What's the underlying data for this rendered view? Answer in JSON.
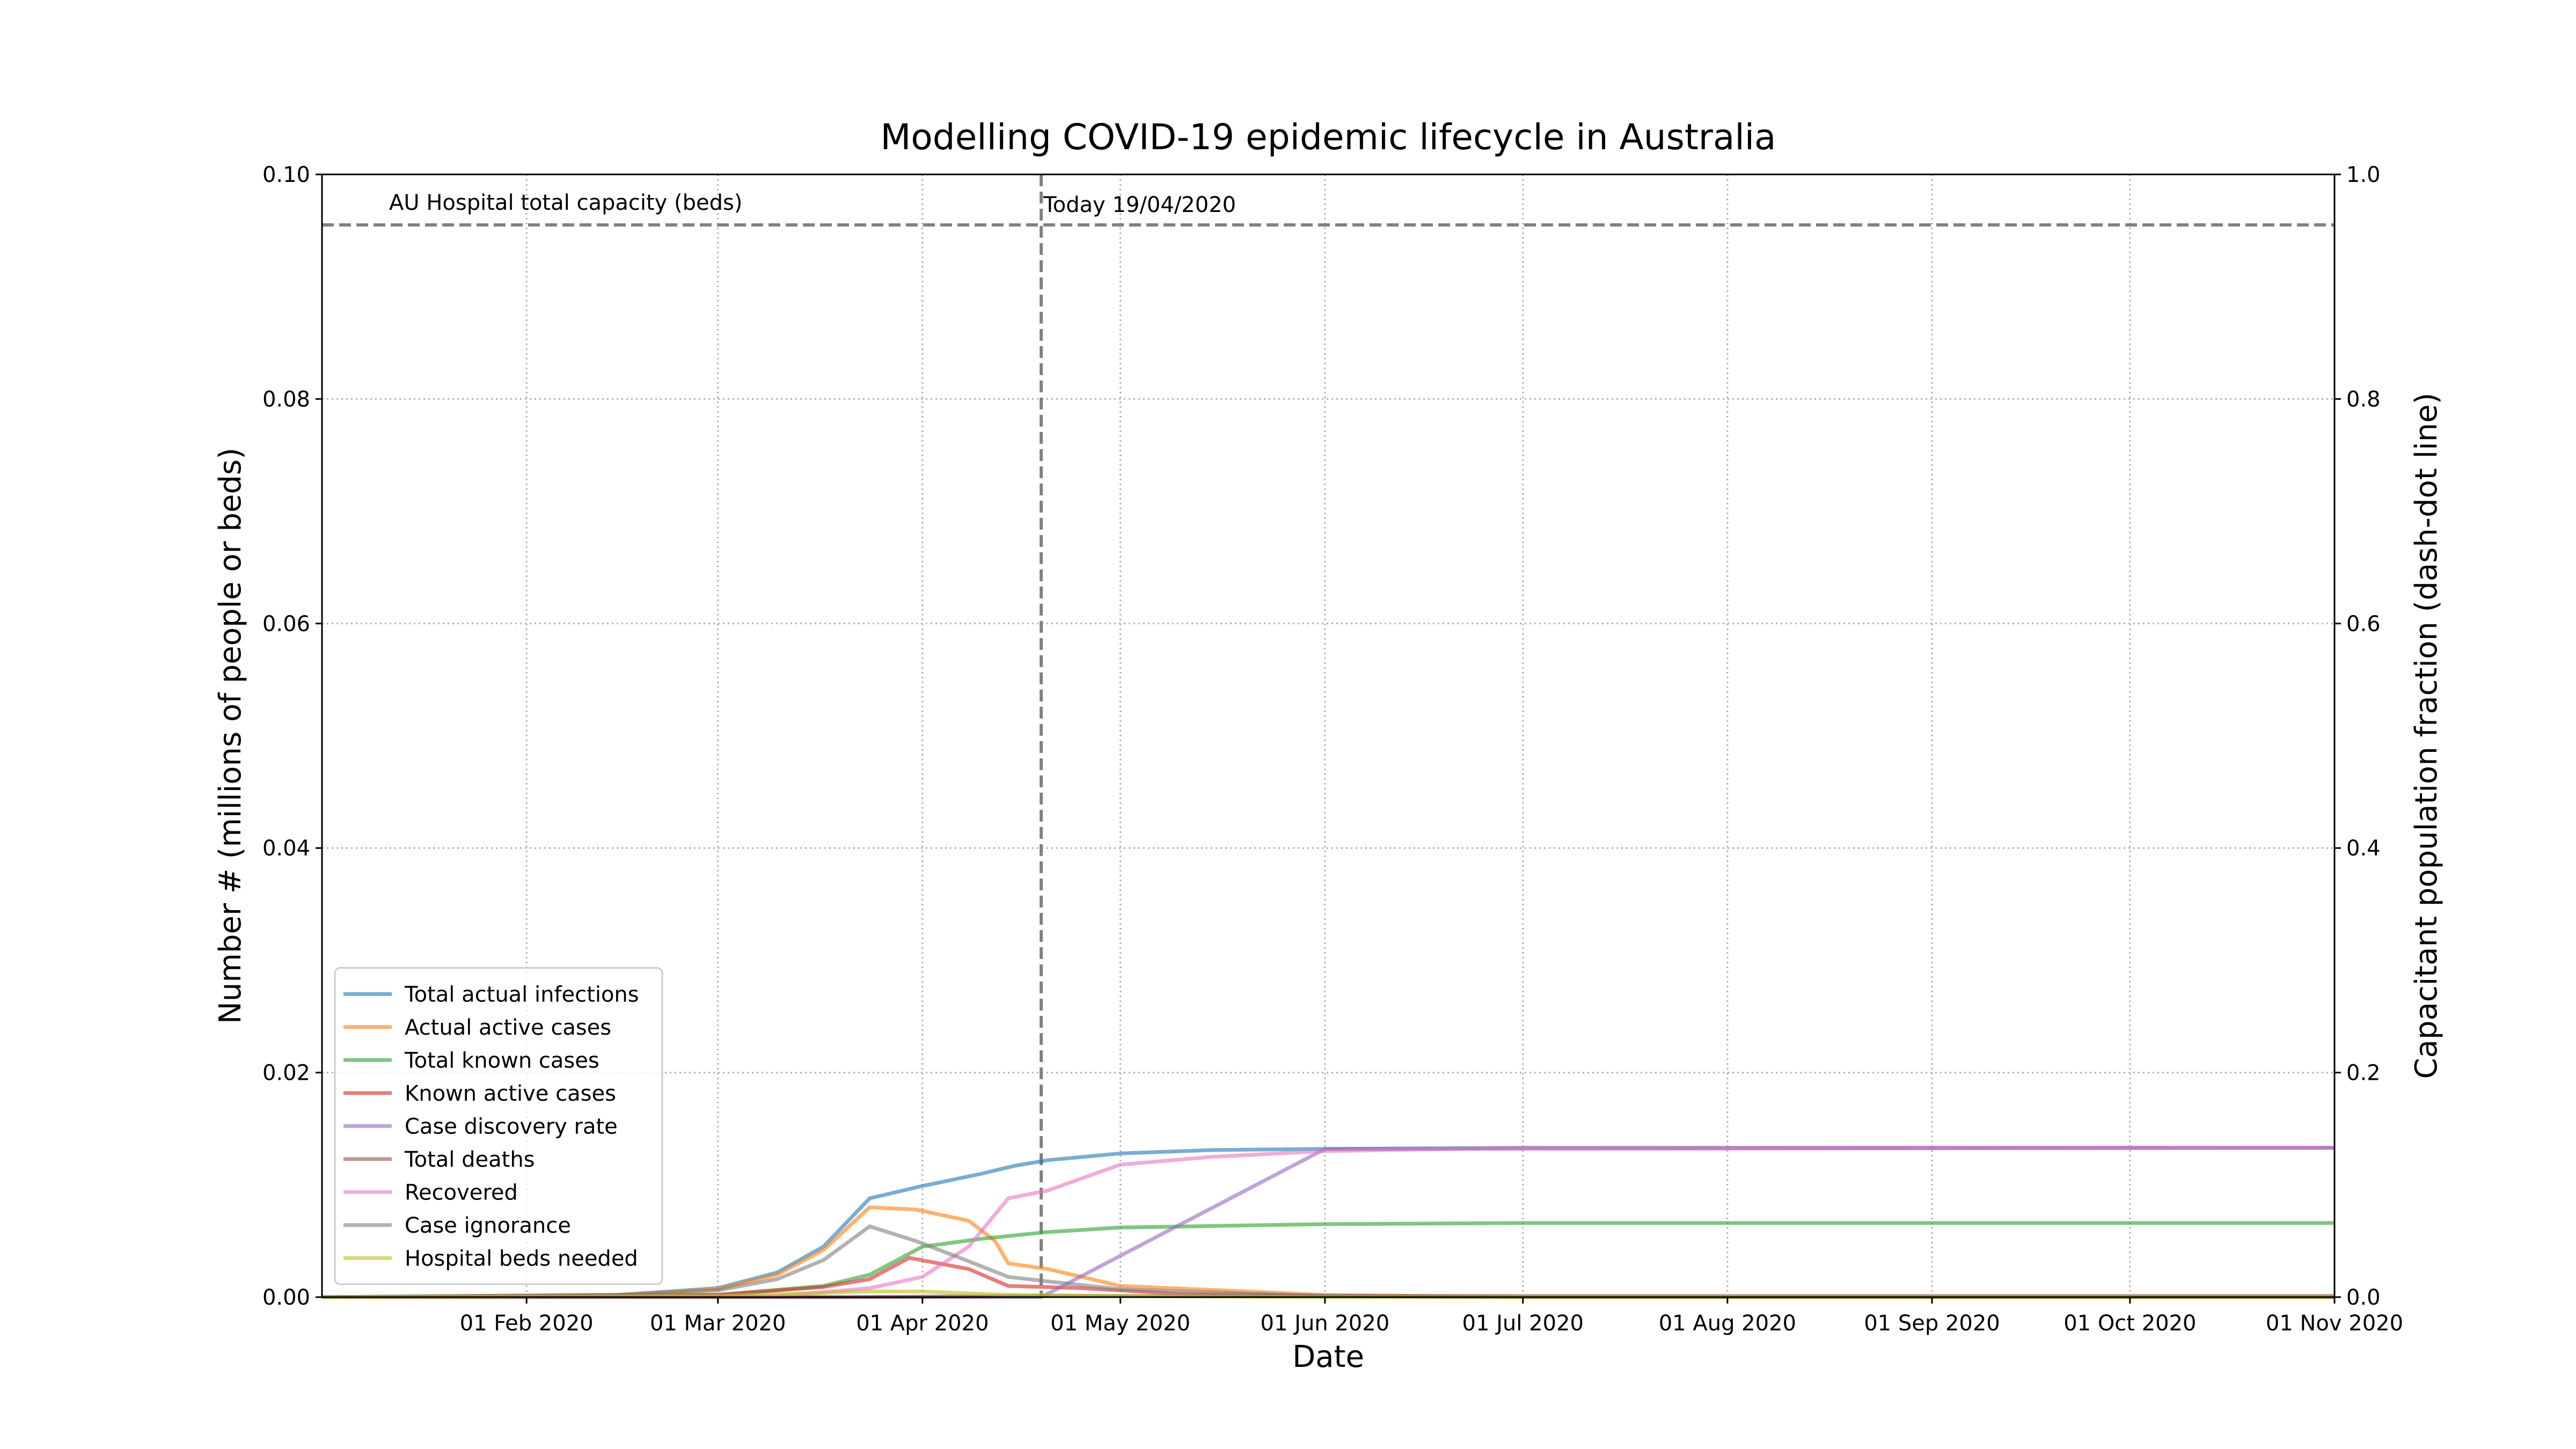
{
  "chart_data": {
    "type": "line",
    "title": "Modelling COVID-19 epidemic lifecycle in Australia",
    "xlabel": "Date",
    "ylabel": "Number # (millions of people or beds)",
    "ylabel_right": "Capacitant population fraction (dash-dot line)",
    "x_axis": {
      "type": "date",
      "range": [
        "2020-01-01",
        "2020-11-01"
      ],
      "ticks": [
        {
          "date": "2020-02-01",
          "label": "01 Feb 2020"
        },
        {
          "date": "2020-03-01",
          "label": "01 Mar 2020"
        },
        {
          "date": "2020-04-01",
          "label": "01 Apr 2020"
        },
        {
          "date": "2020-05-01",
          "label": "01 May 2020"
        },
        {
          "date": "2020-06-01",
          "label": "01 Jun 2020"
        },
        {
          "date": "2020-07-01",
          "label": "01 Jul 2020"
        },
        {
          "date": "2020-08-01",
          "label": "01 Aug 2020"
        },
        {
          "date": "2020-09-01",
          "label": "01 Sep 2020"
        },
        {
          "date": "2020-10-01",
          "label": "01 Oct 2020"
        },
        {
          "date": "2020-11-01",
          "label": "01 Nov 2020"
        }
      ]
    },
    "y_axis": {
      "range": [
        0,
        0.1
      ],
      "ticks": [
        {
          "value": 0,
          "label": "0.00"
        },
        {
          "value": 0.02,
          "label": "0.02"
        },
        {
          "value": 0.04,
          "label": "0.04"
        },
        {
          "value": 0.06,
          "label": "0.06"
        },
        {
          "value": 0.08,
          "label": "0.08"
        },
        {
          "value": 0.1,
          "label": "0.10"
        }
      ]
    },
    "y2_axis": {
      "range": [
        0,
        1
      ],
      "ticks": [
        {
          "value": 0,
          "label": "0.0"
        },
        {
          "value": 0.2,
          "label": "0.2"
        },
        {
          "value": 0.4,
          "label": "0.4"
        },
        {
          "value": 0.6,
          "label": "0.6"
        },
        {
          "value": 0.8,
          "label": "0.8"
        },
        {
          "value": 1.0,
          "label": "1.0"
        }
      ]
    },
    "grid": true,
    "legend_position": "bottom-left",
    "reference_lines": [
      {
        "orientation": "horizontal",
        "value": 0.0955,
        "label": "AU Hospital total capacity (beds)",
        "color": "#808080"
      },
      {
        "orientation": "vertical",
        "date": "2020-04-19",
        "label": "Today 19/04/2020",
        "color": "#808080"
      }
    ],
    "series": [
      {
        "name": "Total actual infections",
        "color": "#1f77b4",
        "points": [
          [
            "2020-01-01",
            0
          ],
          [
            "2020-02-15",
            0.0002
          ],
          [
            "2020-03-01",
            0.0008
          ],
          [
            "2020-03-10",
            0.0022
          ],
          [
            "2020-03-17",
            0.0045
          ],
          [
            "2020-03-24",
            0.0088
          ],
          [
            "2020-04-01",
            0.0099
          ],
          [
            "2020-04-10",
            0.011
          ],
          [
            "2020-04-15",
            0.0117
          ],
          [
            "2020-04-20",
            0.0122
          ],
          [
            "2020-05-01",
            0.0128
          ],
          [
            "2020-05-15",
            0.0131
          ],
          [
            "2020-06-01",
            0.0132
          ],
          [
            "2020-07-01",
            0.0133
          ],
          [
            "2020-11-01",
            0.0133
          ]
        ]
      },
      {
        "name": "Actual active cases",
        "color": "#ff7f0e",
        "points": [
          [
            "2020-01-01",
            0
          ],
          [
            "2020-02-15",
            0.0002
          ],
          [
            "2020-03-01",
            0.0007
          ],
          [
            "2020-03-10",
            0.002
          ],
          [
            "2020-03-17",
            0.0042
          ],
          [
            "2020-03-24",
            0.008
          ],
          [
            "2020-03-31",
            0.0078
          ],
          [
            "2020-04-08",
            0.0068
          ],
          [
            "2020-04-12",
            0.005
          ],
          [
            "2020-04-14",
            0.003
          ],
          [
            "2020-04-20",
            0.0025
          ],
          [
            "2020-05-01",
            0.001
          ],
          [
            "2020-06-01",
            0.0002
          ],
          [
            "2020-07-01",
            0
          ],
          [
            "2020-11-01",
            0
          ]
        ]
      },
      {
        "name": "Total known cases",
        "color": "#2ca02c",
        "points": [
          [
            "2020-01-01",
            0
          ],
          [
            "2020-03-01",
            0.0002
          ],
          [
            "2020-03-17",
            0.001
          ],
          [
            "2020-03-24",
            0.002
          ],
          [
            "2020-04-01",
            0.0045
          ],
          [
            "2020-04-10",
            0.0052
          ],
          [
            "2020-04-20",
            0.0058
          ],
          [
            "2020-05-01",
            0.0062
          ],
          [
            "2020-06-01",
            0.0065
          ],
          [
            "2020-07-01",
            0.0066
          ],
          [
            "2020-11-01",
            0.0066
          ]
        ]
      },
      {
        "name": "Known active cases",
        "color": "#d62728",
        "points": [
          [
            "2020-01-01",
            0
          ],
          [
            "2020-03-01",
            0.0002
          ],
          [
            "2020-03-17",
            0.0009
          ],
          [
            "2020-03-24",
            0.0016
          ],
          [
            "2020-03-30",
            0.0035
          ],
          [
            "2020-04-08",
            0.0025
          ],
          [
            "2020-04-14",
            0.001
          ],
          [
            "2020-04-25",
            0.0008
          ],
          [
            "2020-05-10",
            0.0003
          ],
          [
            "2020-06-01",
            0.0001
          ],
          [
            "2020-07-01",
            0
          ],
          [
            "2020-11-01",
            0
          ]
        ]
      },
      {
        "name": "Case discovery rate",
        "color": "#9467bd",
        "points": [
          [
            "2020-01-01",
            0
          ],
          [
            "2020-04-19",
            0
          ],
          [
            "2020-06-01",
            0.0132
          ],
          [
            "2020-11-01",
            0.0133
          ]
        ]
      },
      {
        "name": "Total deaths",
        "color": "#8c564b",
        "points": [
          [
            "2020-01-01",
            0
          ],
          [
            "2020-03-20",
            0
          ],
          [
            "2020-04-15",
            0.0001
          ],
          [
            "2020-11-01",
            0.0001
          ]
        ]
      },
      {
        "name": "Recovered",
        "color": "#e377c2",
        "points": [
          [
            "2020-01-01",
            0
          ],
          [
            "2020-03-10",
            0.0001
          ],
          [
            "2020-03-24",
            0.0008
          ],
          [
            "2020-04-01",
            0.0018
          ],
          [
            "2020-04-08",
            0.0045
          ],
          [
            "2020-04-14",
            0.0088
          ],
          [
            "2020-04-20",
            0.0095
          ],
          [
            "2020-05-01",
            0.0118
          ],
          [
            "2020-05-15",
            0.0125
          ],
          [
            "2020-06-01",
            0.013
          ],
          [
            "2020-07-01",
            0.0133
          ],
          [
            "2020-11-01",
            0.0133
          ]
        ]
      },
      {
        "name": "Case ignorance",
        "color": "#7f7f7f",
        "points": [
          [
            "2020-01-01",
            0
          ],
          [
            "2020-02-15",
            0.0002
          ],
          [
            "2020-03-01",
            0.0006
          ],
          [
            "2020-03-10",
            0.0016
          ],
          [
            "2020-03-17",
            0.0033
          ],
          [
            "2020-03-24",
            0.0063
          ],
          [
            "2020-03-31",
            0.005
          ],
          [
            "2020-04-08",
            0.0032
          ],
          [
            "2020-04-14",
            0.0018
          ],
          [
            "2020-04-20",
            0.0014
          ],
          [
            "2020-05-01",
            0.0007
          ],
          [
            "2020-06-01",
            0.0001
          ],
          [
            "2020-07-01",
            0
          ],
          [
            "2020-11-01",
            0
          ]
        ]
      },
      {
        "name": "Hospital beds needed",
        "color": "#bcbd22",
        "points": [
          [
            "2020-01-01",
            0
          ],
          [
            "2020-03-01",
            0.0001
          ],
          [
            "2020-03-24",
            0.0005
          ],
          [
            "2020-04-01",
            0.0005
          ],
          [
            "2020-04-14",
            0.0002
          ],
          [
            "2020-05-01",
            0.0001
          ],
          [
            "2020-06-01",
            0
          ],
          [
            "2020-11-01",
            0
          ]
        ]
      }
    ]
  }
}
